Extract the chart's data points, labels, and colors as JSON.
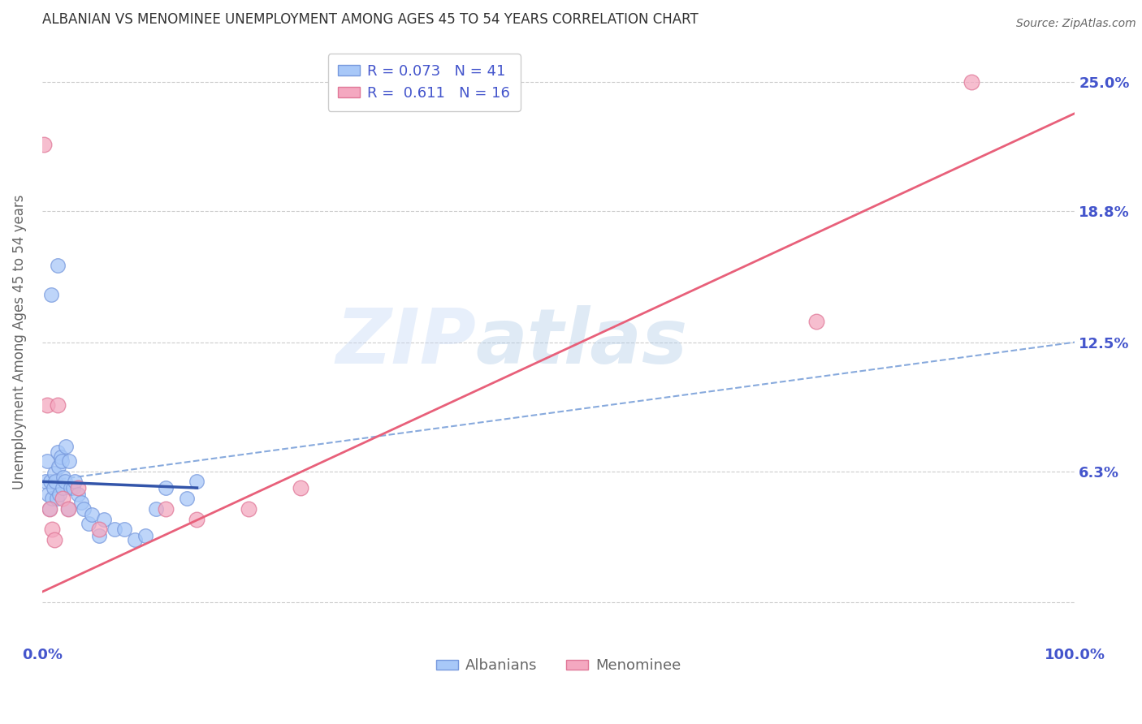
{
  "title": "ALBANIAN VS MENOMINEE UNEMPLOYMENT AMONG AGES 45 TO 54 YEARS CORRELATION CHART",
  "source": "Source: ZipAtlas.com",
  "ylabel": "Unemployment Among Ages 45 to 54 years",
  "xlim": [
    0.0,
    100.0
  ],
  "ylim": [
    -2.0,
    27.0
  ],
  "ytick_positions": [
    0.0,
    6.3,
    12.5,
    18.8,
    25.0
  ],
  "ytick_labels": [
    "",
    "6.3%",
    "12.5%",
    "18.8%",
    "25.0%"
  ],
  "watermark_top": "ZIP",
  "watermark_bot": "atlas",
  "albanian_color": "#a8c8f8",
  "albanian_edge": "#7799dd",
  "menominee_color": "#f4a8c0",
  "menominee_edge": "#e07898",
  "albanian_line_color": "#3355aa",
  "albanian_dashed_color": "#88aadd",
  "menominee_line_color": "#e8607a",
  "albanian_x": [
    0.3,
    0.5,
    0.6,
    0.7,
    0.8,
    0.9,
    1.0,
    1.1,
    1.2,
    1.3,
    1.4,
    1.5,
    1.6,
    1.7,
    1.8,
    1.9,
    2.0,
    2.1,
    2.2,
    2.3,
    2.5,
    2.6,
    2.8,
    3.0,
    3.2,
    3.5,
    3.8,
    4.0,
    4.5,
    4.8,
    5.5,
    6.0,
    7.0,
    8.0,
    9.0,
    10.0,
    11.0,
    12.0,
    14.0,
    15.0,
    1.5
  ],
  "albanian_y": [
    5.8,
    6.8,
    5.2,
    4.5,
    5.8,
    14.8,
    5.0,
    5.5,
    6.2,
    5.8,
    5.0,
    7.2,
    6.5,
    5.2,
    7.0,
    6.8,
    5.5,
    6.0,
    5.8,
    7.5,
    4.5,
    6.8,
    5.5,
    5.5,
    5.8,
    5.2,
    4.8,
    4.5,
    3.8,
    4.2,
    3.2,
    4.0,
    3.5,
    3.5,
    3.0,
    3.2,
    4.5,
    5.5,
    5.0,
    5.8,
    16.2
  ],
  "menominee_x": [
    0.2,
    0.5,
    0.7,
    1.0,
    1.2,
    1.5,
    2.0,
    2.5,
    3.5,
    5.5,
    12.0,
    15.0,
    20.0,
    25.0,
    75.0,
    90.0
  ],
  "menominee_y": [
    22.0,
    9.5,
    4.5,
    3.5,
    3.0,
    9.5,
    5.0,
    4.5,
    5.5,
    3.5,
    4.5,
    4.0,
    4.5,
    5.5,
    13.5,
    25.0
  ],
  "alb_trend_x0": 0.0,
  "alb_trend_x1": 15.0,
  "alb_trend_y0": 5.8,
  "alb_trend_y1": 5.5,
  "alb_dash_x0": 0.0,
  "alb_dash_x1": 100.0,
  "alb_dash_y0": 5.8,
  "alb_dash_y1": 12.5,
  "men_trend_x0": 0.0,
  "men_trend_x1": 100.0,
  "men_trend_y0": 0.5,
  "men_trend_y1": 23.5,
  "grid_color": "#cccccc",
  "background_color": "#ffffff",
  "title_color": "#333333",
  "axis_label_color": "#666666",
  "tick_color": "#4455cc",
  "legend_albanian_r": "R = 0.073",
  "legend_albanian_n": "N = 41",
  "legend_menominee_r": "R =  0.611",
  "legend_menominee_n": "N = 16",
  "legend_label_albanian": "Albanians",
  "legend_label_menominee": "Menominee"
}
